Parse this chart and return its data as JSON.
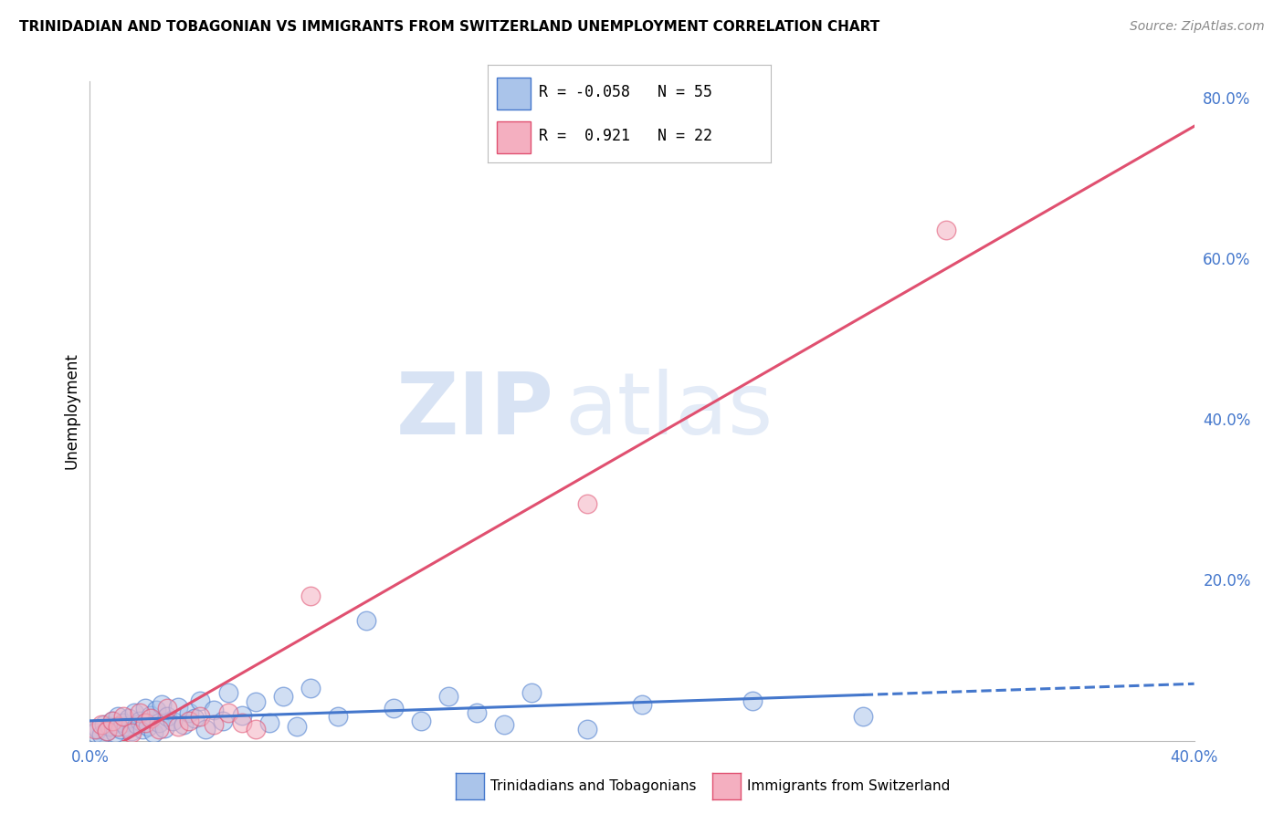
{
  "title": "TRINIDADIAN AND TOBAGONIAN VS IMMIGRANTS FROM SWITZERLAND UNEMPLOYMENT CORRELATION CHART",
  "source": "Source: ZipAtlas.com",
  "ylabel": "Unemployment",
  "legend_blue_label": "Trinidadians and Tobagonians",
  "legend_pink_label": "Immigrants from Switzerland",
  "r_blue": "-0.058",
  "n_blue": "55",
  "r_pink": "0.921",
  "n_pink": "22",
  "blue_color": "#aac4ea",
  "pink_color": "#f4afc0",
  "trendline_blue_color": "#4477cc",
  "trendline_pink_color": "#e05070",
  "background_color": "#ffffff",
  "grid_color": "#cccccc",
  "watermark_zip": "ZIP",
  "watermark_atlas": "atlas",
  "xlim": [
    0.0,
    0.4
  ],
  "ylim": [
    0.0,
    0.82
  ],
  "blue_scatter_x": [
    0.002,
    0.003,
    0.004,
    0.005,
    0.006,
    0.007,
    0.008,
    0.009,
    0.01,
    0.011,
    0.012,
    0.013,
    0.014,
    0.015,
    0.016,
    0.017,
    0.018,
    0.019,
    0.02,
    0.021,
    0.022,
    0.023,
    0.024,
    0.025,
    0.026,
    0.027,
    0.028,
    0.03,
    0.032,
    0.034,
    0.036,
    0.038,
    0.04,
    0.042,
    0.045,
    0.048,
    0.05,
    0.055,
    0.06,
    0.065,
    0.07,
    0.075,
    0.08,
    0.09,
    0.1,
    0.11,
    0.12,
    0.13,
    0.14,
    0.15,
    0.16,
    0.18,
    0.2,
    0.24,
    0.28
  ],
  "blue_scatter_y": [
    0.01,
    0.015,
    0.008,
    0.02,
    0.012,
    0.018,
    0.025,
    0.01,
    0.03,
    0.015,
    0.022,
    0.018,
    0.028,
    0.012,
    0.035,
    0.02,
    0.025,
    0.015,
    0.04,
    0.018,
    0.032,
    0.01,
    0.038,
    0.022,
    0.045,
    0.016,
    0.03,
    0.025,
    0.042,
    0.02,
    0.035,
    0.028,
    0.05,
    0.015,
    0.038,
    0.025,
    0.06,
    0.032,
    0.048,
    0.022,
    0.055,
    0.018,
    0.065,
    0.03,
    0.15,
    0.04,
    0.025,
    0.055,
    0.035,
    0.02,
    0.06,
    0.015,
    0.045,
    0.05,
    0.03
  ],
  "pink_scatter_x": [
    0.002,
    0.004,
    0.006,
    0.008,
    0.01,
    0.012,
    0.015,
    0.018,
    0.02,
    0.022,
    0.025,
    0.028,
    0.032,
    0.036,
    0.04,
    0.045,
    0.05,
    0.055,
    0.06,
    0.08,
    0.18,
    0.31
  ],
  "pink_scatter_y": [
    0.015,
    0.02,
    0.012,
    0.025,
    0.018,
    0.03,
    0.01,
    0.035,
    0.022,
    0.028,
    0.015,
    0.04,
    0.018,
    0.025,
    0.03,
    0.02,
    0.035,
    0.022,
    0.015,
    0.18,
    0.295,
    0.635
  ]
}
